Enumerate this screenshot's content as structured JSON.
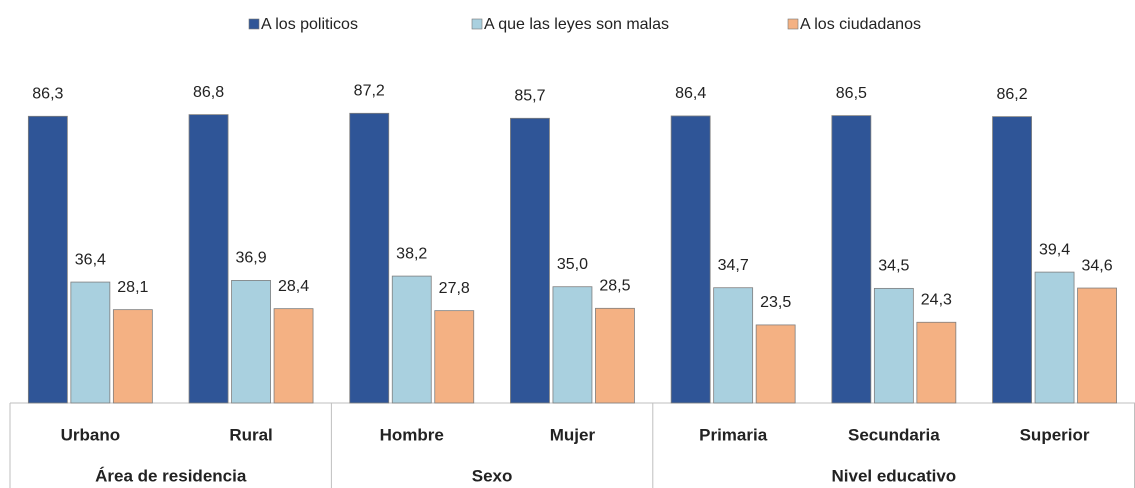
{
  "chart_data": {
    "type": "bar",
    "groups": [
      {
        "name": "Área de residencia",
        "categories": [
          "Urbano",
          "Rural"
        ]
      },
      {
        "name": "Sexo",
        "categories": [
          "Hombre",
          "Mujer"
        ]
      },
      {
        "name": "Nivel educativo",
        "categories": [
          "Primaria",
          "Secundaria",
          "Superior"
        ]
      }
    ],
    "series": [
      {
        "name": "A los politicos",
        "color": "#2f5597",
        "values": [
          86.3,
          86.8,
          87.2,
          85.7,
          86.4,
          86.5,
          86.2
        ],
        "value_labels": [
          "86,3",
          "86,8",
          "87,2",
          "85,7",
          "86,4",
          "86,5",
          "86,2"
        ]
      },
      {
        "name": "A que las leyes son malas",
        "color": "#a9d0df",
        "values": [
          36.4,
          36.9,
          38.2,
          35.0,
          34.7,
          34.5,
          39.4
        ],
        "value_labels": [
          "36,4",
          "36,9",
          "38,2",
          "35,0",
          "34,7",
          "34,5",
          "39,4"
        ]
      },
      {
        "name": "A los ciudadanos",
        "color": "#f4b183",
        "values": [
          28.1,
          28.4,
          27.8,
          28.5,
          23.5,
          24.3,
          34.6
        ],
        "value_labels": [
          "28,1",
          "28,4",
          "27,8",
          "28,5",
          "23,5",
          "24,3",
          "34,6"
        ]
      }
    ],
    "ylim": [
      0,
      90
    ],
    "legend": "top"
  }
}
